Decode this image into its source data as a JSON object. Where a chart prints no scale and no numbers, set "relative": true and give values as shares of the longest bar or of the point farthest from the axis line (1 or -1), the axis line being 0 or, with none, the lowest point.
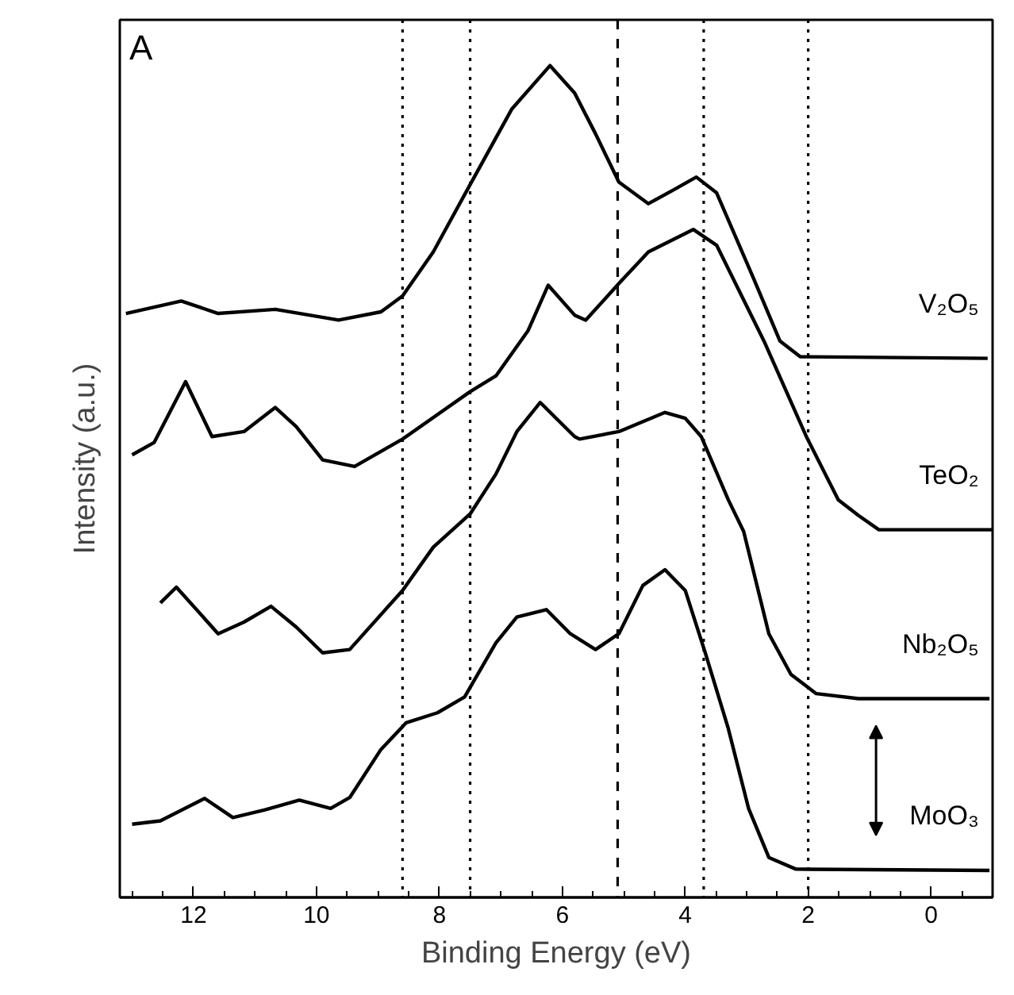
{
  "chart_data": {
    "type": "line",
    "relative": true,
    "xlabel": "Binding Energy (eV)",
    "ylabel": "Intensity (a.u.)",
    "annotations": [
      "A"
    ],
    "xlim": [
      13.2,
      -1
    ],
    "xticks": [
      12,
      10,
      8,
      6,
      4,
      2,
      0,
      {
        "value": 13,
        "label": null
      },
      {
        "value": 12.5,
        "label": null
      },
      {
        "value": 11.5,
        "label": null
      },
      {
        "value": 11,
        "label": null
      },
      {
        "value": 10.5,
        "label": null
      },
      {
        "value": 9.5,
        "label": null
      },
      {
        "value": 9,
        "label": null
      },
      {
        "value": 8.5,
        "label": null
      },
      {
        "value": 7.5,
        "label": null
      },
      {
        "value": 7,
        "label": null
      },
      {
        "value": 6.5,
        "label": null
      },
      {
        "value": 5.5,
        "label": null
      },
      {
        "value": 5,
        "label": null
      },
      {
        "value": 4.5,
        "label": null
      },
      {
        "value": 3.5,
        "label": null
      },
      {
        "value": 3,
        "label": null
      },
      {
        "value": 2.5,
        "label": null
      },
      {
        "value": 1.5,
        "label": null
      },
      {
        "value": 1,
        "label": null
      },
      {
        "value": 0.5,
        "label": null
      },
      {
        "value": -0.5,
        "label": null
      },
      {
        "value": -1,
        "label": null
      }
    ],
    "tick_labels": "x",
    "grid": false,
    "marker": "none",
    "line_style": "solid",
    "ref_lines": [
      {
        "axis": "x",
        "value": 8.6,
        "line_style": "dotted"
      },
      {
        "axis": "x",
        "value": 7.5,
        "line_style": "dotted"
      },
      {
        "axis": "x",
        "value": 5.1,
        "line_style": "dashed"
      },
      {
        "axis": "x",
        "value": 3.7,
        "line_style": "dotted"
      },
      {
        "axis": "x",
        "value": 2.0,
        "line_style": "dotted"
      }
    ],
    "series": [
      {
        "name": "V₂O₅",
        "color": "#000000",
        "x": [
          13.1,
          12.2,
          11.6,
          10.67,
          9.64,
          8.95,
          8.6,
          8.1,
          7.5,
          6.82,
          6.2,
          5.8,
          5.46,
          5.08,
          4.6,
          4.18,
          3.82,
          3.49,
          2.9,
          2.46,
          2.13,
          -0.92
        ],
        "values": [
          0.702,
          0.717,
          0.702,
          0.707,
          0.694,
          0.704,
          0.723,
          0.776,
          0.857,
          0.948,
          1.0,
          0.967,
          0.918,
          0.86,
          0.834,
          0.851,
          0.866,
          0.847,
          0.746,
          0.669,
          0.65,
          0.648
        ]
      },
      {
        "name": "TeO₂",
        "color": "#000000",
        "x": [
          13.0,
          12.64,
          12.13,
          11.7,
          11.18,
          10.67,
          10.33,
          9.9,
          9.38,
          8.6,
          7.5,
          7.08,
          6.56,
          6.23,
          5.8,
          5.62,
          5.08,
          4.6,
          3.87,
          3.49,
          2.72,
          2.03,
          1.51,
          1.18,
          0.85,
          -1.0
        ],
        "values": [
          0.532,
          0.547,
          0.62,
          0.554,
          0.56,
          0.589,
          0.566,
          0.526,
          0.518,
          0.551,
          0.608,
          0.627,
          0.681,
          0.736,
          0.7,
          0.694,
          0.738,
          0.776,
          0.803,
          0.784,
          0.669,
          0.554,
          0.478,
          0.459,
          0.442,
          0.442
        ]
      },
      {
        "name": "Nb₂O₅",
        "color": "#000000",
        "x": [
          12.54,
          12.28,
          11.6,
          11.18,
          10.74,
          10.33,
          9.9,
          9.46,
          8.6,
          8.1,
          7.5,
          7.08,
          6.74,
          6.36,
          5.8,
          5.72,
          5.08,
          4.33,
          4.0,
          3.74,
          3.3,
          3.05,
          2.64,
          2.28,
          1.87,
          1.18,
          -0.95
        ],
        "values": [
          0.354,
          0.373,
          0.317,
          0.331,
          0.35,
          0.325,
          0.294,
          0.298,
          0.369,
          0.421,
          0.461,
          0.509,
          0.56,
          0.595,
          0.554,
          0.551,
          0.56,
          0.583,
          0.576,
          0.554,
          0.478,
          0.44,
          0.317,
          0.268,
          0.245,
          0.239,
          0.239
        ]
      },
      {
        "name": "MoO₃",
        "color": "#000000",
        "x": [
          13.0,
          12.54,
          11.82,
          11.36,
          10.85,
          10.28,
          9.77,
          9.46,
          8.95,
          8.54,
          8.03,
          7.59,
          7.08,
          6.74,
          6.26,
          5.87,
          5.46,
          5.08,
          4.69,
          4.33,
          4.0,
          3.67,
          3.3,
          2.97,
          2.64,
          2.2,
          -0.95
        ],
        "values": [
          0.088,
          0.092,
          0.119,
          0.096,
          0.105,
          0.117,
          0.107,
          0.12,
          0.178,
          0.21,
          0.222,
          0.241,
          0.306,
          0.337,
          0.346,
          0.317,
          0.298,
          0.317,
          0.375,
          0.394,
          0.369,
          0.293,
          0.203,
          0.107,
          0.048,
          0.034,
          0.0325
        ]
      }
    ]
  }
}
